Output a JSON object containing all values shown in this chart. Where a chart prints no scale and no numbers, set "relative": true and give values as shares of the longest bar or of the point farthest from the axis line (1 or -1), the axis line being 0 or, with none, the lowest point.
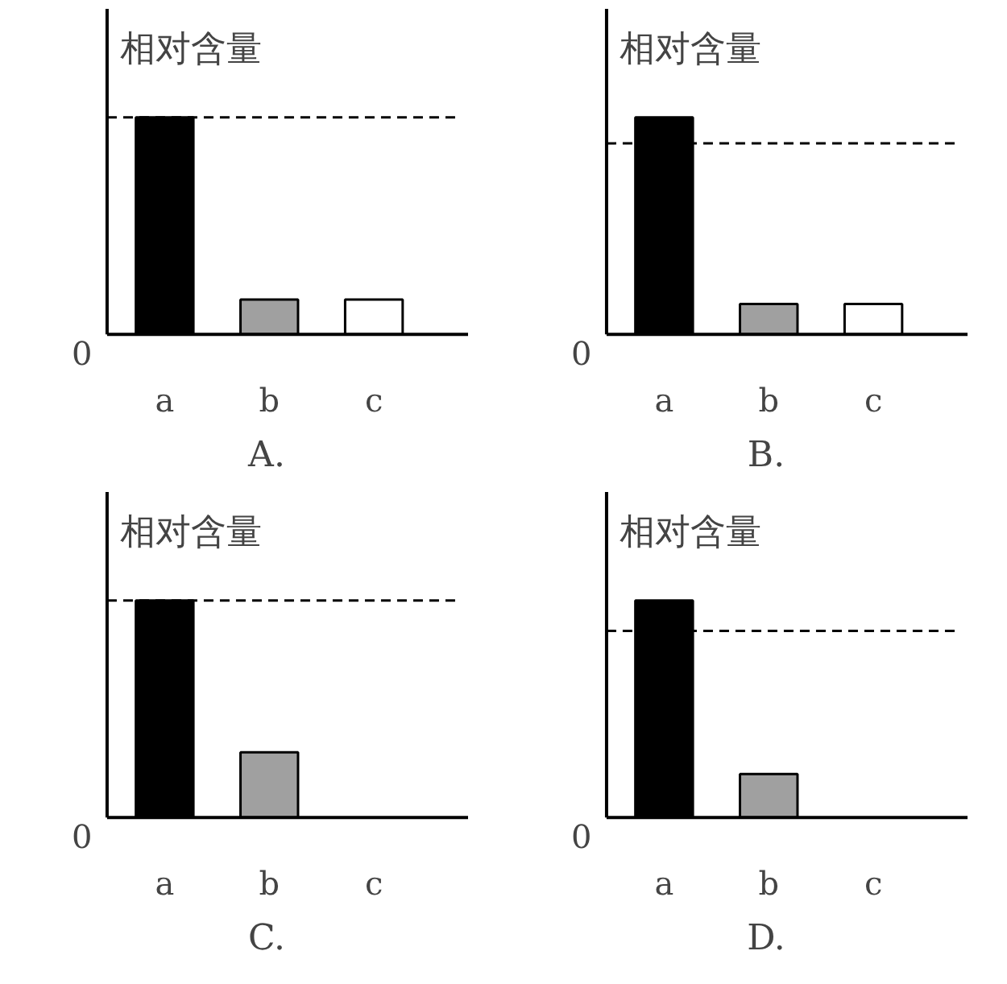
{
  "chart_data": [
    {
      "type": "bar",
      "relative": true,
      "title": "A.",
      "ylabel": "相对含量",
      "categories": [
        "a",
        "b",
        "c"
      ],
      "values": [
        1,
        0.16,
        0.16
      ],
      "colors": [
        "#000000",
        "#a0a0a0",
        "#ffffff"
      ],
      "annotations": [
        "0"
      ],
      "ref_lines": [
        {
          "axis": "y",
          "value": 1,
          "line_style": "dashed"
        }
      ]
    },
    {
      "type": "bar",
      "relative": true,
      "title": "B.",
      "ylabel": "相对含量",
      "categories": [
        "a",
        "b",
        "c"
      ],
      "values": [
        1,
        0.14,
        0.14
      ],
      "colors": [
        "#000000",
        "#a0a0a0",
        "#ffffff"
      ],
      "annotations": [
        "0"
      ],
      "ref_lines": [
        {
          "axis": "y",
          "value": 0.88,
          "line_style": "dashed"
        }
      ]
    },
    {
      "type": "bar",
      "relative": true,
      "title": "C.",
      "ylabel": "相对含量",
      "categories": [
        "a",
        "b",
        "c"
      ],
      "values": [
        1,
        0.3,
        null
      ],
      "colors": [
        "#000000",
        "#a0a0a0",
        "#ffffff"
      ],
      "annotations": [
        "0"
      ],
      "ref_lines": [
        {
          "axis": "y",
          "value": 1,
          "line_style": "dashed"
        }
      ]
    },
    {
      "type": "bar",
      "relative": true,
      "title": "D.",
      "ylabel": "相对含量",
      "categories": [
        "a",
        "b",
        "c"
      ],
      "values": [
        1,
        0.2,
        null
      ],
      "colors": [
        "#000000",
        "#a0a0a0",
        "#ffffff"
      ],
      "annotations": [
        "0"
      ],
      "ref_lines": [
        {
          "axis": "y",
          "value": 0.86,
          "line_style": "dashed"
        }
      ]
    }
  ]
}
